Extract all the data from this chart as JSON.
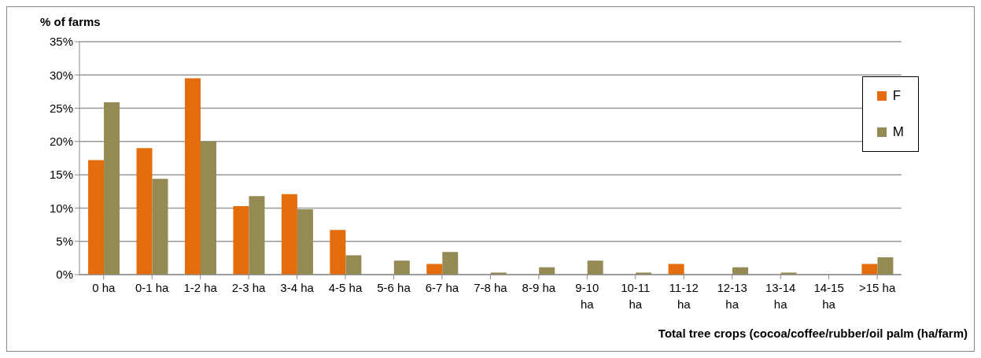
{
  "chart_data": {
    "type": "bar",
    "ylabel": "% of farms",
    "xlabel": "Total tree crops (cocoa/coffee/rubber/oil palm (ha/farm)",
    "categories": [
      "0 ha",
      "0-1 ha",
      "1-2 ha",
      "2-3 ha",
      "3-4 ha",
      "4-5 ha",
      "5-6 ha",
      "6-7 ha",
      "7-8 ha",
      "8-9 ha",
      "9-10 ha",
      "10-11 ha",
      "11-12 ha",
      "12-13 ha",
      "13-14 ha",
      "14-15 ha",
      ">15 ha"
    ],
    "series": [
      {
        "name": "F",
        "color": "#e46c0a",
        "values": [
          17.2,
          19.0,
          29.5,
          10.3,
          12.1,
          6.7,
          0,
          1.6,
          0,
          0,
          0,
          0,
          1.6,
          0,
          0,
          0,
          1.6
        ]
      },
      {
        "name": "M",
        "color": "#948a54",
        "values": [
          25.9,
          14.4,
          20.0,
          11.8,
          9.8,
          2.9,
          2.1,
          3.4,
          0.3,
          1.1,
          2.1,
          0.3,
          0,
          1.1,
          0.3,
          0,
          2.6
        ]
      }
    ],
    "ylim": [
      0,
      35
    ],
    "yticks": [
      {
        "value": 0,
        "label": "0%"
      },
      {
        "value": 5,
        "label": "5%"
      },
      {
        "value": 10,
        "label": "10%"
      },
      {
        "value": 15,
        "label": "15%"
      },
      {
        "value": 20,
        "label": "20%"
      },
      {
        "value": 25,
        "label": "25%"
      },
      {
        "value": 30,
        "label": "30%"
      },
      {
        "value": 35,
        "label": "35%"
      }
    ],
    "grid": "y",
    "legend": "right"
  }
}
